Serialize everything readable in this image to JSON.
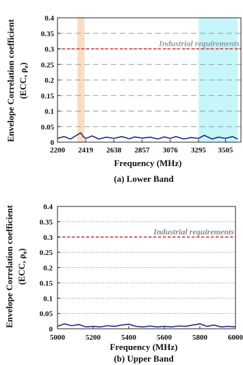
{
  "chart_data": [
    {
      "type": "line",
      "caption": "(a) Lower Band",
      "ylabel_line1": "Envelope Correlation coefficient",
      "ylabel_line2": "(ECC, ρ",
      "ylabel_sub": "e",
      "ylabel_end": ")",
      "xlabel": "Frequency (MHz)",
      "xlim": [
        2200,
        3625
      ],
      "ylim": [
        0,
        0.4
      ],
      "xticks": [
        2200,
        2419,
        2638,
        2857,
        3076,
        3295,
        3505
      ],
      "yticks": [
        0,
        0.05,
        0.1,
        0.15,
        0.2,
        0.25,
        0.3,
        0.35,
        0.4
      ],
      "ytick_labels": [
        "0",
        "0.05",
        "0.1",
        "0.15",
        "0.2",
        "0.25",
        "0.3",
        "0.35",
        "0.4"
      ],
      "grid": "dashed",
      "threshold": {
        "value": 0.3,
        "label": "Industrial requirements",
        "color": "#d62222"
      },
      "bands": [
        {
          "from": 2355,
          "to": 2410,
          "color": "#f9dcc4"
        },
        {
          "from": 3295,
          "to": 3600,
          "color": "#c6f5fa"
        }
      ],
      "series": [
        {
          "color": "#1a2a7a",
          "x": [
            2200,
            2250,
            2300,
            2340,
            2380,
            2400,
            2419,
            2470,
            2520,
            2580,
            2638,
            2700,
            2760,
            2800,
            2857,
            2920,
            2980,
            3030,
            3076,
            3120,
            3180,
            3240,
            3295,
            3340,
            3400,
            3450,
            3505,
            3560,
            3600
          ],
          "values": [
            0.012,
            0.018,
            0.01,
            0.02,
            0.03,
            0.018,
            0.012,
            0.02,
            0.01,
            0.016,
            0.012,
            0.018,
            0.011,
            0.017,
            0.013,
            0.016,
            0.01,
            0.017,
            0.012,
            0.018,
            0.01,
            0.015,
            0.012,
            0.022,
            0.01,
            0.016,
            0.012,
            0.018,
            0.01
          ]
        }
      ]
    },
    {
      "type": "line",
      "caption": "(b) Upper Band",
      "ylabel_line1": "Envelope Correlation coefficient",
      "ylabel_line2": "(ECC, ρ",
      "ylabel_sub": "e",
      "ylabel_end": ")",
      "xlabel": "Frequency (MHz)",
      "xlim": [
        5000,
        6000
      ],
      "ylim": [
        0,
        0.4
      ],
      "xticks": [
        5000,
        5200,
        5400,
        5600,
        5800,
        6000
      ],
      "yticks": [
        0,
        0.05,
        0.1,
        0.15,
        0.2,
        0.25,
        0.3,
        0.35,
        0.4
      ],
      "ytick_labels": [
        "0",
        "0.05",
        "0.1",
        "0.15",
        "0.2",
        "0.25",
        "0.3",
        "0.35",
        "0.4"
      ],
      "grid": "dotted",
      "threshold": {
        "value": 0.3,
        "label": "Industrial requirements",
        "color": "#d62222"
      },
      "bands": [],
      "series": [
        {
          "color": "#1a2a7a",
          "x": [
            5000,
            5040,
            5080,
            5120,
            5160,
            5200,
            5240,
            5280,
            5320,
            5360,
            5400,
            5440,
            5480,
            5520,
            5560,
            5600,
            5640,
            5680,
            5720,
            5760,
            5800,
            5840,
            5880,
            5920,
            5960,
            6000
          ],
          "values": [
            0.008,
            0.016,
            0.01,
            0.014,
            0.006,
            0.008,
            0.006,
            0.01,
            0.008,
            0.012,
            0.015,
            0.008,
            0.006,
            0.009,
            0.006,
            0.008,
            0.006,
            0.009,
            0.008,
            0.012,
            0.016,
            0.008,
            0.012,
            0.006,
            0.008,
            0.006
          ]
        }
      ]
    }
  ]
}
